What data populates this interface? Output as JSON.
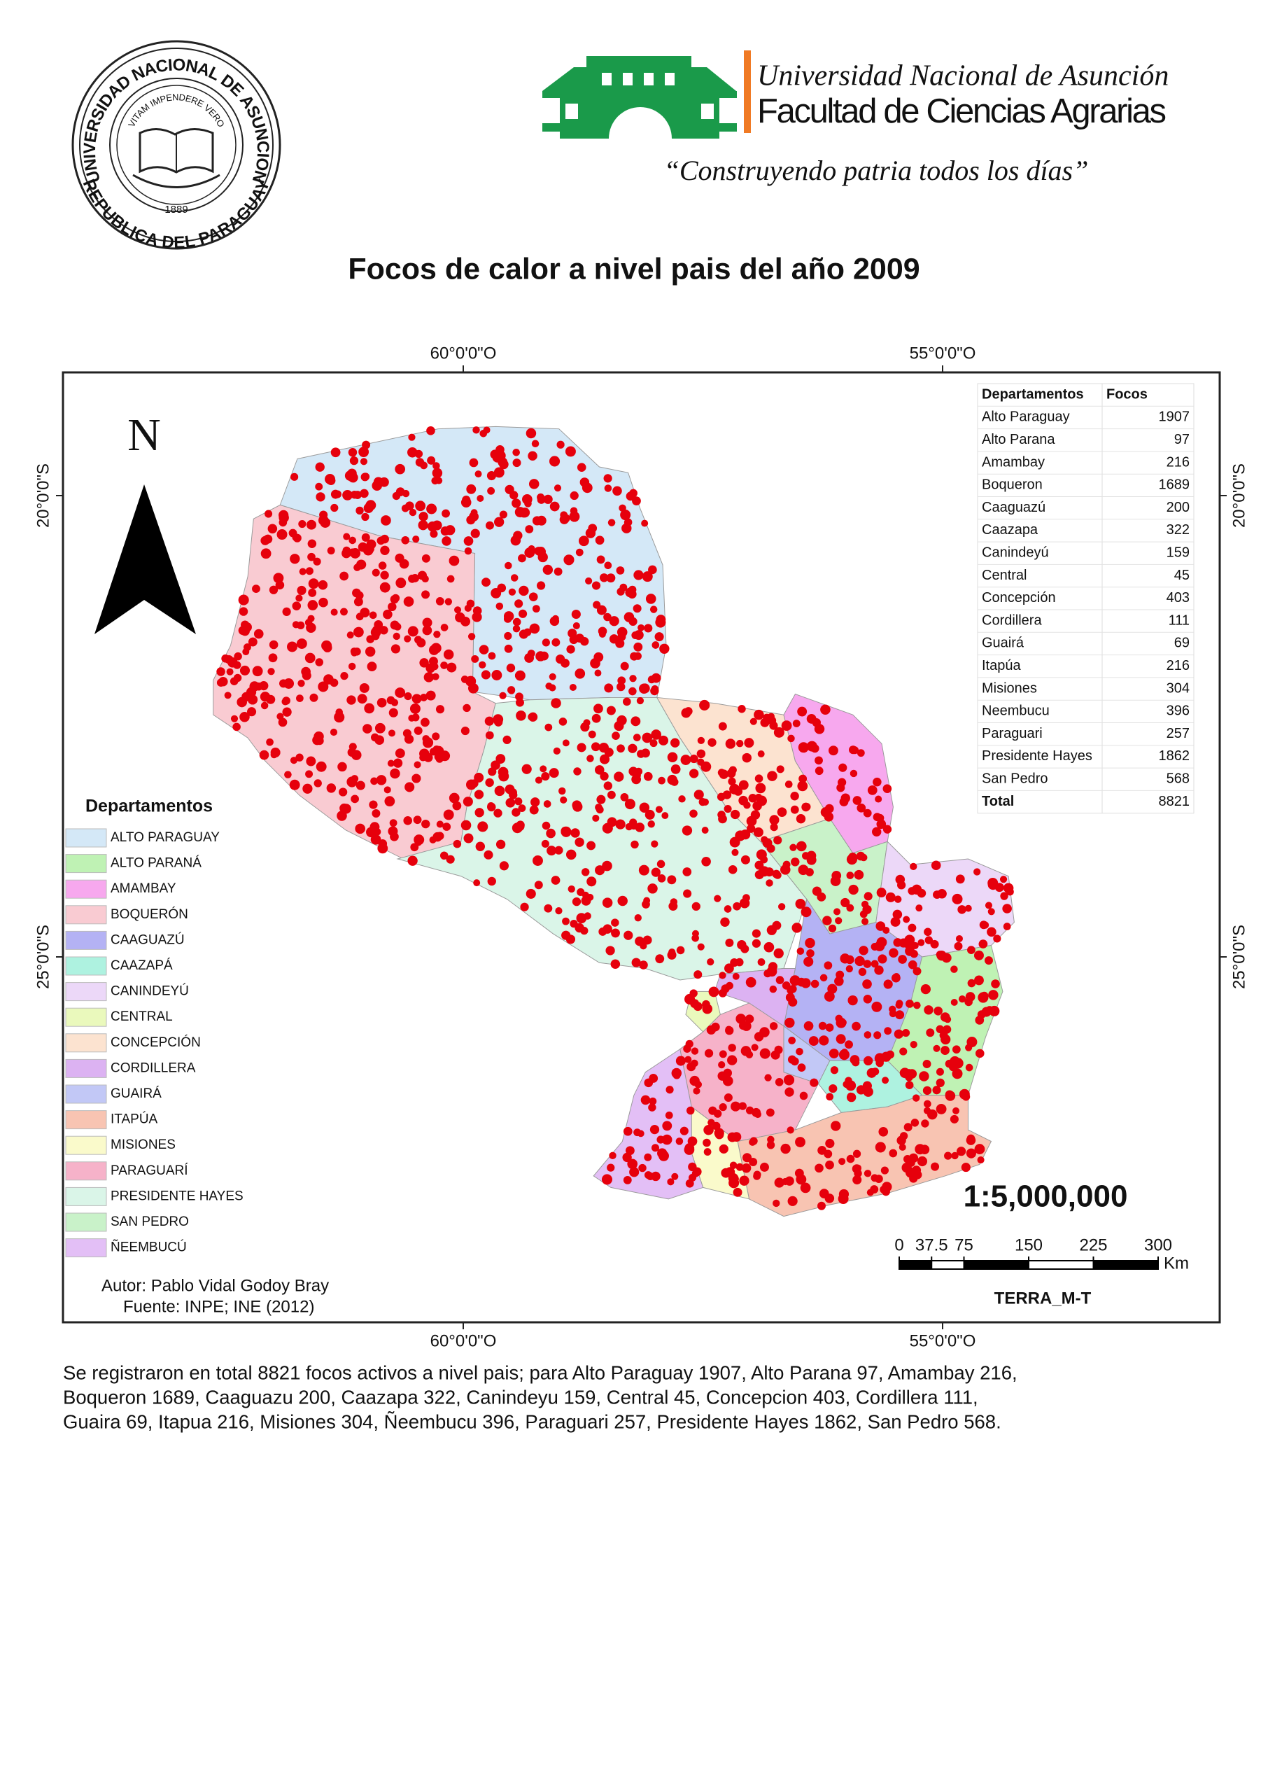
{
  "header": {
    "seal": {
      "top": "UNIVERSIDAD NACIONAL DE ASUNCION",
      "motto": "VITAM IMPENDERE VERO",
      "year": "1889",
      "bottom": "REPUBLICA DEL PARAGUAY"
    },
    "university": "Universidad Nacional de Asunción",
    "faculty": "Facultad de Ciencias Agrarias",
    "slogan": "“Construyendo patria todos los días”"
  },
  "title": "Focos de calor a nivel pais del año 2009",
  "graticule": {
    "top": [
      "60°0'0\"O",
      "55°0'0\"O"
    ],
    "bottom": [
      "60°0'0\"O",
      "55°0'0\"O"
    ],
    "left": [
      "20°0'0\"S",
      "25°0'0\"S"
    ],
    "right": [
      "20°0'0\"S",
      "25°0'0\"S"
    ]
  },
  "north": "N",
  "table": {
    "header": [
      "Departamentos",
      "Focos"
    ],
    "rows": [
      [
        "Alto Paraguay",
        "1907"
      ],
      [
        "Alto Parana",
        "97"
      ],
      [
        "Amambay",
        "216"
      ],
      [
        "Boqueron",
        "1689"
      ],
      [
        "Caaguazú",
        "200"
      ],
      [
        "Caazapa",
        "322"
      ],
      [
        "Canindeyú",
        "159"
      ],
      [
        "Central",
        "45"
      ],
      [
        "Concepción",
        "403"
      ],
      [
        "Cordillera",
        "111"
      ],
      [
        "Guairá",
        "69"
      ],
      [
        "Itapúa",
        "216"
      ],
      [
        "Misiones",
        "304"
      ],
      [
        "Neembucu",
        "396"
      ],
      [
        "Paraguari",
        "257"
      ],
      [
        "Presidente Hayes",
        "1862"
      ],
      [
        "San Pedro",
        "568"
      ]
    ],
    "total": [
      "Total",
      "8821"
    ]
  },
  "legend": {
    "title": "Departamentos",
    "items": [
      {
        "label": "ALTO PARAGUAY",
        "color": "#d4e8f7"
      },
      {
        "label": "ALTO PARANÁ",
        "color": "#bff2b4"
      },
      {
        "label": "AMAMBAY",
        "color": "#f7a8ee"
      },
      {
        "label": "BOQUERÓN",
        "color": "#f9cbd2"
      },
      {
        "label": "CAAGUAZÚ",
        "color": "#b4b2f4"
      },
      {
        "label": "CAAZAPÁ",
        "color": "#aef2e0"
      },
      {
        "label": "CANINDEYÚ",
        "color": "#ecd8f8"
      },
      {
        "label": "CENTRAL",
        "color": "#eaf9bc"
      },
      {
        "label": "CONCEPCIÓN",
        "color": "#fce3d0"
      },
      {
        "label": "CORDILLERA",
        "color": "#dcb2f2"
      },
      {
        "label": "GUAIRÁ",
        "color": "#c2c8f6"
      },
      {
        "label": "ITAPÚA",
        "color": "#f8c4b2"
      },
      {
        "label": "MISIONES",
        "color": "#fafacb"
      },
      {
        "label": "PARAGUARÍ",
        "color": "#f6b2c9"
      },
      {
        "label": "PRESIDENTE HAYES",
        "color": "#daf5e8"
      },
      {
        "label": "SAN PEDRO",
        "color": "#c9f2c9"
      },
      {
        "label": "ÑEEMBUCÚ",
        "color": "#e3bff6"
      }
    ]
  },
  "scale": {
    "ratio": "1:5,000,000",
    "ticks": [
      0,
      37.5,
      75,
      150,
      225,
      300
    ],
    "unit": "Km"
  },
  "source_mark": "TERRA_M-T",
  "credits": [
    "Autor: Pablo Vidal Godoy Bray",
    "Fuente: INPE; INE (2012)"
  ],
  "caption": [
    "Se registraron en total 8821 focos activos a nivel pais; para Alto Paraguay 1907, Alto Parana 97, Amambay 216,",
    " Boqueron 1689, Caaguazu 200, Caazapa 322, Canindeyu 159, Central 45, Concepcion 403, Cordillera 111,",
    "Guaira 69, Itapua 216, Misiones 304, Ñeembucu 396, Paraguari 257, Presidente Hayes 1862, San Pedro 568."
  ]
}
